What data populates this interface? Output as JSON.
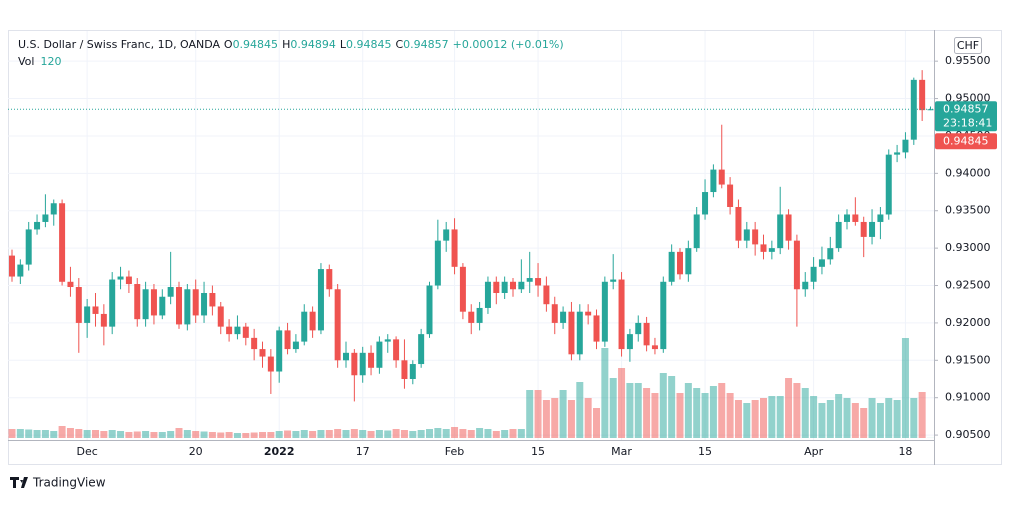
{
  "header": {
    "symbol": "U.S. Dollar / Swiss Franc, 1D, OANDA",
    "o": "O",
    "h": "H",
    "l": "L",
    "c": "C",
    "change": "+0.00012 (+0.01%)",
    "vol_label": "Vol",
    "currency": "CHF",
    "countdown": "23:18:41",
    "brand": "TradingView"
  },
  "chart_data": {
    "type": "candlestick",
    "up_color": "#26a69a",
    "down_color": "#ef5350",
    "volume_up_color": "rgba(38,166,154,0.5)",
    "volume_down_color": "rgba(239,83,80,0.5)",
    "ylim": [
      0.901,
      0.9589
    ],
    "yticks": [
      {
        "value": 0.955,
        "label": "0.95500"
      },
      {
        "value": 0.95,
        "label": "0.95000"
      },
      {
        "value": 0.945,
        "label": "0.94500"
      },
      {
        "value": 0.94,
        "label": "0.94000"
      },
      {
        "value": 0.935,
        "label": "0.93500"
      },
      {
        "value": 0.93,
        "label": "0.93000"
      },
      {
        "value": 0.925,
        "label": "0.92500"
      },
      {
        "value": 0.92,
        "label": "0.92000"
      },
      {
        "value": 0.915,
        "label": "0.91500"
      },
      {
        "value": 0.91,
        "label": "0.91000"
      },
      {
        "value": 0.905,
        "label": "0.90500"
      }
    ],
    "grid": true,
    "categories": [
      null,
      null,
      null,
      null,
      null,
      null,
      null,
      null,
      null,
      "Dec",
      null,
      null,
      null,
      null,
      null,
      null,
      null,
      null,
      null,
      null,
      null,
      null,
      "20",
      null,
      null,
      null,
      null,
      null,
      null,
      null,
      null,
      null,
      "2022",
      null,
      null,
      null,
      null,
      null,
      null,
      null,
      null,
      null,
      "17",
      null,
      null,
      null,
      null,
      null,
      null,
      null,
      null,
      null,
      null,
      "Feb",
      null,
      null,
      null,
      null,
      null,
      null,
      null,
      null,
      null,
      "15",
      null,
      null,
      null,
      null,
      null,
      null,
      null,
      null,
      null,
      "Mar",
      null,
      null,
      null,
      null,
      null,
      null,
      null,
      null,
      null,
      "15",
      null,
      null,
      null,
      null,
      null,
      null,
      null,
      null,
      null,
      null,
      null,
      null,
      "Apr",
      null,
      null,
      null,
      null,
      null,
      null,
      null,
      null,
      null,
      null,
      "18",
      null,
      null,
      null
    ],
    "ohlc": [
      [
        0.929,
        0.9298,
        0.9255,
        0.9262
      ],
      [
        0.9262,
        0.9285,
        0.9252,
        0.9278
      ],
      [
        0.9278,
        0.9335,
        0.927,
        0.9325
      ],
      [
        0.9325,
        0.9345,
        0.9318,
        0.9335
      ],
      [
        0.9335,
        0.9372,
        0.9328,
        0.9345
      ],
      [
        0.9345,
        0.9365,
        0.933,
        0.936
      ],
      [
        0.936,
        0.9365,
        0.925,
        0.9255
      ],
      [
        0.9255,
        0.9275,
        0.9235,
        0.9248
      ],
      [
        0.9248,
        0.926,
        0.916,
        0.92
      ],
      [
        0.92,
        0.9232,
        0.918,
        0.9222
      ],
      [
        0.9222,
        0.924,
        0.9195,
        0.9212
      ],
      [
        0.9212,
        0.9225,
        0.917,
        0.9195
      ],
      [
        0.9195,
        0.9268,
        0.9185,
        0.9258
      ],
      [
        0.9258,
        0.9275,
        0.9245,
        0.9262
      ],
      [
        0.9262,
        0.927,
        0.924,
        0.9252
      ],
      [
        0.9252,
        0.926,
        0.9195,
        0.9205
      ],
      [
        0.9205,
        0.9255,
        0.9195,
        0.9245
      ],
      [
        0.9245,
        0.9252,
        0.9198,
        0.921
      ],
      [
        0.921,
        0.9245,
        0.9205,
        0.9235
      ],
      [
        0.9235,
        0.9295,
        0.9225,
        0.9248
      ],
      [
        0.9248,
        0.9255,
        0.9192,
        0.9198
      ],
      [
        0.9198,
        0.9252,
        0.919,
        0.9245
      ],
      [
        0.9245,
        0.9258,
        0.92,
        0.921
      ],
      [
        0.921,
        0.9255,
        0.92,
        0.924
      ],
      [
        0.924,
        0.925,
        0.921,
        0.9222
      ],
      [
        0.9222,
        0.9228,
        0.9185,
        0.9195
      ],
      [
        0.9195,
        0.9205,
        0.9175,
        0.9185
      ],
      [
        0.9185,
        0.921,
        0.9178,
        0.9195
      ],
      [
        0.9195,
        0.92,
        0.917,
        0.918
      ],
      [
        0.918,
        0.9192,
        0.915,
        0.9165
      ],
      [
        0.9165,
        0.9175,
        0.914,
        0.9155
      ],
      [
        0.9155,
        0.9165,
        0.9105,
        0.9135
      ],
      [
        0.9135,
        0.9195,
        0.912,
        0.919
      ],
      [
        0.919,
        0.92,
        0.9158,
        0.9165
      ],
      [
        0.9165,
        0.9185,
        0.916,
        0.9175
      ],
      [
        0.9175,
        0.9225,
        0.917,
        0.9215
      ],
      [
        0.9215,
        0.9222,
        0.918,
        0.919
      ],
      [
        0.919,
        0.928,
        0.9185,
        0.9272
      ],
      [
        0.9272,
        0.9278,
        0.9235,
        0.9245
      ],
      [
        0.9245,
        0.9252,
        0.914,
        0.915
      ],
      [
        0.915,
        0.9175,
        0.914,
        0.916
      ],
      [
        0.916,
        0.9165,
        0.9095,
        0.913
      ],
      [
        0.913,
        0.9168,
        0.912,
        0.916
      ],
      [
        0.916,
        0.917,
        0.913,
        0.914
      ],
      [
        0.914,
        0.9182,
        0.9132,
        0.9175
      ],
      [
        0.9175,
        0.9185,
        0.916,
        0.9178
      ],
      [
        0.9178,
        0.9182,
        0.914,
        0.915
      ],
      [
        0.915,
        0.9178,
        0.9112,
        0.9125
      ],
      [
        0.9125,
        0.915,
        0.9118,
        0.9145
      ],
      [
        0.9145,
        0.9192,
        0.914,
        0.9185
      ],
      [
        0.9185,
        0.9255,
        0.918,
        0.925
      ],
      [
        0.925,
        0.9338,
        0.9245,
        0.931
      ],
      [
        0.931,
        0.9335,
        0.9295,
        0.9325
      ],
      [
        0.9325,
        0.934,
        0.9265,
        0.9275
      ],
      [
        0.9275,
        0.928,
        0.9205,
        0.9215
      ],
      [
        0.9215,
        0.9225,
        0.9185,
        0.92
      ],
      [
        0.92,
        0.9228,
        0.919,
        0.922
      ],
      [
        0.922,
        0.9262,
        0.9212,
        0.9255
      ],
      [
        0.9255,
        0.9262,
        0.9225,
        0.924
      ],
      [
        0.924,
        0.9262,
        0.9232,
        0.9255
      ],
      [
        0.9255,
        0.926,
        0.9235,
        0.9245
      ],
      [
        0.9245,
        0.9285,
        0.924,
        0.9255
      ],
      [
        0.9255,
        0.9295,
        0.924,
        0.926
      ],
      [
        0.926,
        0.928,
        0.9235,
        0.925
      ],
      [
        0.925,
        0.9262,
        0.9215,
        0.9225
      ],
      [
        0.9225,
        0.9235,
        0.9185,
        0.92
      ],
      [
        0.92,
        0.9222,
        0.9192,
        0.9215
      ],
      [
        0.9215,
        0.9228,
        0.915,
        0.9158
      ],
      [
        0.9158,
        0.9225,
        0.915,
        0.9215
      ],
      [
        0.9215,
        0.9225,
        0.9198,
        0.921
      ],
      [
        0.921,
        0.9218,
        0.9165,
        0.9175
      ],
      [
        0.9175,
        0.9262,
        0.9168,
        0.9255
      ],
      [
        0.9255,
        0.9292,
        0.9245,
        0.9258
      ],
      [
        0.9258,
        0.9268,
        0.9155,
        0.9165
      ],
      [
        0.9165,
        0.9192,
        0.9148,
        0.9185
      ],
      [
        0.9185,
        0.921,
        0.9175,
        0.92
      ],
      [
        0.92,
        0.9208,
        0.9162,
        0.917
      ],
      [
        0.917,
        0.918,
        0.9158,
        0.9165
      ],
      [
        0.9165,
        0.9262,
        0.916,
        0.9255
      ],
      [
        0.9255,
        0.9305,
        0.925,
        0.9295
      ],
      [
        0.9295,
        0.93,
        0.9258,
        0.9265
      ],
      [
        0.9265,
        0.931,
        0.9255,
        0.93
      ],
      [
        0.93,
        0.9355,
        0.9295,
        0.9345
      ],
      [
        0.9345,
        0.9392,
        0.9338,
        0.9375
      ],
      [
        0.9375,
        0.9412,
        0.9368,
        0.9405
      ],
      [
        0.9405,
        0.9465,
        0.938,
        0.9385
      ],
      [
        0.9385,
        0.9395,
        0.9345,
        0.9355
      ],
      [
        0.9355,
        0.9365,
        0.93,
        0.931
      ],
      [
        0.931,
        0.9335,
        0.93,
        0.9325
      ],
      [
        0.9325,
        0.9335,
        0.929,
        0.9305
      ],
      [
        0.9305,
        0.9318,
        0.9285,
        0.9295
      ],
      [
        0.9295,
        0.931,
        0.9285,
        0.93
      ],
      [
        0.93,
        0.9382,
        0.9292,
        0.9345
      ],
      [
        0.9345,
        0.9352,
        0.9298,
        0.931
      ],
      [
        0.931,
        0.9318,
        0.9195,
        0.9245
      ],
      [
        0.9245,
        0.9268,
        0.9235,
        0.9255
      ],
      [
        0.9255,
        0.9288,
        0.9245,
        0.9275
      ],
      [
        0.9275,
        0.9302,
        0.9265,
        0.9285
      ],
      [
        0.9285,
        0.9315,
        0.9278,
        0.93
      ],
      [
        0.93,
        0.9345,
        0.9295,
        0.9335
      ],
      [
        0.9335,
        0.9352,
        0.9325,
        0.9345
      ],
      [
        0.9345,
        0.9368,
        0.933,
        0.9335
      ],
      [
        0.9335,
        0.9342,
        0.9288,
        0.9315
      ],
      [
        0.9315,
        0.9352,
        0.9305,
        0.9335
      ],
      [
        0.9335,
        0.9355,
        0.9312,
        0.9345
      ],
      [
        0.9345,
        0.9432,
        0.9338,
        0.9425
      ],
      [
        0.9425,
        0.9438,
        0.9415,
        0.9428
      ],
      [
        0.9428,
        0.9455,
        0.942,
        0.9445
      ],
      [
        0.9445,
        0.9528,
        0.9438,
        0.9525
      ],
      [
        0.9525,
        0.9538,
        0.947,
        0.94845
      ],
      [
        0.94845,
        0.94894,
        0.94845,
        0.94857
      ]
    ],
    "volume": [
      9000,
      9000,
      8500,
      8000,
      8000,
      7000,
      12000,
      10000,
      9000,
      8000,
      8000,
      7000,
      8000,
      7000,
      6000,
      6500,
      7000,
      6000,
      6000,
      7000,
      10000,
      8000,
      7000,
      6500,
      6000,
      5500,
      6000,
      5000,
      5000,
      5500,
      6000,
      6000,
      7000,
      7500,
      7000,
      8000,
      7000,
      8000,
      8000,
      9000,
      8000,
      9000,
      8000,
      7000,
      8000,
      7500,
      9000,
      8000,
      7000,
      8000,
      9000,
      10000,
      9000,
      11000,
      9000,
      8000,
      10000,
      9000,
      7000,
      8000,
      9000,
      9000,
      48000,
      48000,
      38000,
      40000,
      48000,
      38000,
      56000,
      40000,
      30000,
      90000,
      60000,
      70000,
      55000,
      55000,
      50000,
      45000,
      65000,
      62000,
      45000,
      55000,
      50000,
      45000,
      52000,
      55000,
      45000,
      38000,
      35000,
      38000,
      40000,
      42000,
      42000,
      60000,
      55000,
      50000,
      42000,
      35000,
      38000,
      44000,
      40000,
      35000,
      30000,
      40000,
      35000,
      40000,
      38000,
      100000,
      40000,
      46000,
      120
    ]
  }
}
